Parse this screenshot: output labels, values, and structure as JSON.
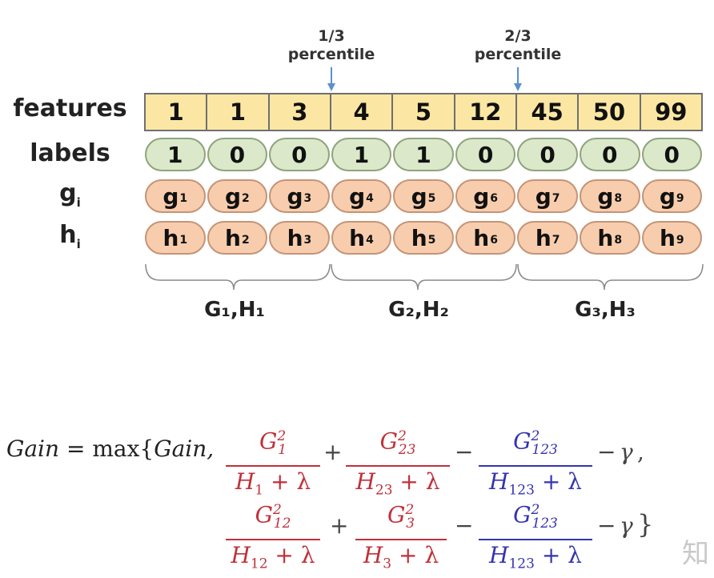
{
  "percentiles": [
    {
      "fraction": "1/3",
      "word": "percentile"
    },
    {
      "fraction": "2/3",
      "word": "percentile"
    }
  ],
  "row_labels": {
    "features": "features",
    "labels": "labels",
    "g": "g",
    "g_sub": "i",
    "h": "h",
    "h_sub": "i"
  },
  "features": [
    "1",
    "1",
    "3",
    "4",
    "5",
    "12",
    "45",
    "50",
    "99"
  ],
  "labels": [
    "1",
    "0",
    "0",
    "1",
    "1",
    "0",
    "0",
    "0",
    "0"
  ],
  "g_values": [
    {
      "base": "g",
      "sub": "1"
    },
    {
      "base": "g",
      "sub": "2"
    },
    {
      "base": "g",
      "sub": "3"
    },
    {
      "base": "g",
      "sub": "4"
    },
    {
      "base": "g",
      "sub": "5"
    },
    {
      "base": "g",
      "sub": "6"
    },
    {
      "base": "g",
      "sub": "7"
    },
    {
      "base": "g",
      "sub": "8"
    },
    {
      "base": "g",
      "sub": "9"
    }
  ],
  "h_values": [
    {
      "base": "h",
      "sub": "1"
    },
    {
      "base": "h",
      "sub": "2"
    },
    {
      "base": "h",
      "sub": "3"
    },
    {
      "base": "h",
      "sub": "4"
    },
    {
      "base": "h",
      "sub": "5"
    },
    {
      "base": "h",
      "sub": "6"
    },
    {
      "base": "h",
      "sub": "7"
    },
    {
      "base": "h",
      "sub": "8"
    },
    {
      "base": "h",
      "sub": "9"
    }
  ],
  "groups": [
    "G₁,H₁",
    "G₂,H₂",
    "G₃,H₃"
  ],
  "formula": {
    "lhs": "Gain",
    "equals": "=",
    "max": "max{",
    "gain_arg": "Gain,",
    "line1": [
      {
        "num_base": "G",
        "num_sup": "2",
        "num_sub": "1",
        "den": "H",
        "den_sub": "1",
        "den_rest": " + λ"
      },
      {
        "num_base": "G",
        "num_sup": "2",
        "num_sub": "23",
        "den": "H",
        "den_sub": "23",
        "den_rest": " + λ"
      },
      {
        "num_base": "G",
        "num_sup": "2",
        "num_sub": "123",
        "den": "H",
        "den_sub": "123",
        "den_rest": " + λ"
      }
    ],
    "line2": [
      {
        "num_base": "G",
        "num_sup": "2",
        "num_sub": "12",
        "den": "H",
        "den_sub": "12",
        "den_rest": " + λ"
      },
      {
        "num_base": "G",
        "num_sup": "2",
        "num_sub": "3",
        "den": "H",
        "den_sub": "3",
        "den_rest": " + λ"
      },
      {
        "num_base": "G",
        "num_sup": "2",
        "num_sub": "123",
        "den": "H",
        "den_sub": "123",
        "den_rest": " + λ"
      }
    ],
    "plus": "+",
    "minus": "−",
    "gamma": "γ",
    "comma": ",",
    "close": "}"
  },
  "watermark": "知"
}
